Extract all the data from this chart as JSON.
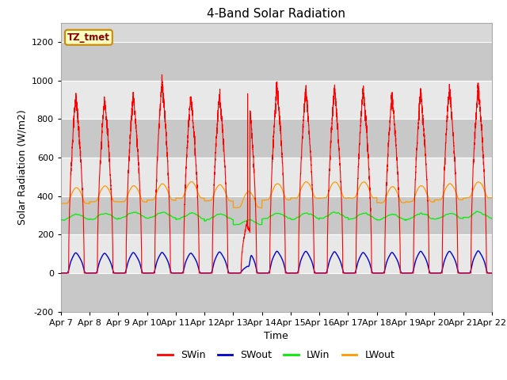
{
  "title": "4-Band Solar Radiation",
  "xlabel": "Time",
  "ylabel": "Solar Radiation (W/m2)",
  "ylim": [
    -200,
    1300
  ],
  "yticks": [
    -200,
    0,
    200,
    400,
    600,
    800,
    1000,
    1200
  ],
  "background_color": "#ffffff",
  "plot_bg_color": "#d8d8d8",
  "band_colors": [
    "#c8c8c8",
    "#e8e8e8"
  ],
  "legend_labels": [
    "SWin",
    "SWout",
    "LWin",
    "LWout"
  ],
  "legend_colors": [
    "#ff0000",
    "#0000cc",
    "#00ee00",
    "#ff9900"
  ],
  "annotation_text": "TZ_tmet",
  "annotation_bg": "#ffffc0",
  "annotation_border": "#cc8800",
  "days": [
    "Apr 7",
    "Apr 8",
    "Apr 9",
    "Apr 10",
    "Apr 11",
    "Apr 12",
    "Apr 13",
    "Apr 14",
    "Apr 15",
    "Apr 16",
    "Apr 17",
    "Apr 18",
    "Apr 19",
    "Apr 20",
    "Apr 21",
    "Apr 22"
  ],
  "n_days": 15,
  "pts_per_day": 288
}
